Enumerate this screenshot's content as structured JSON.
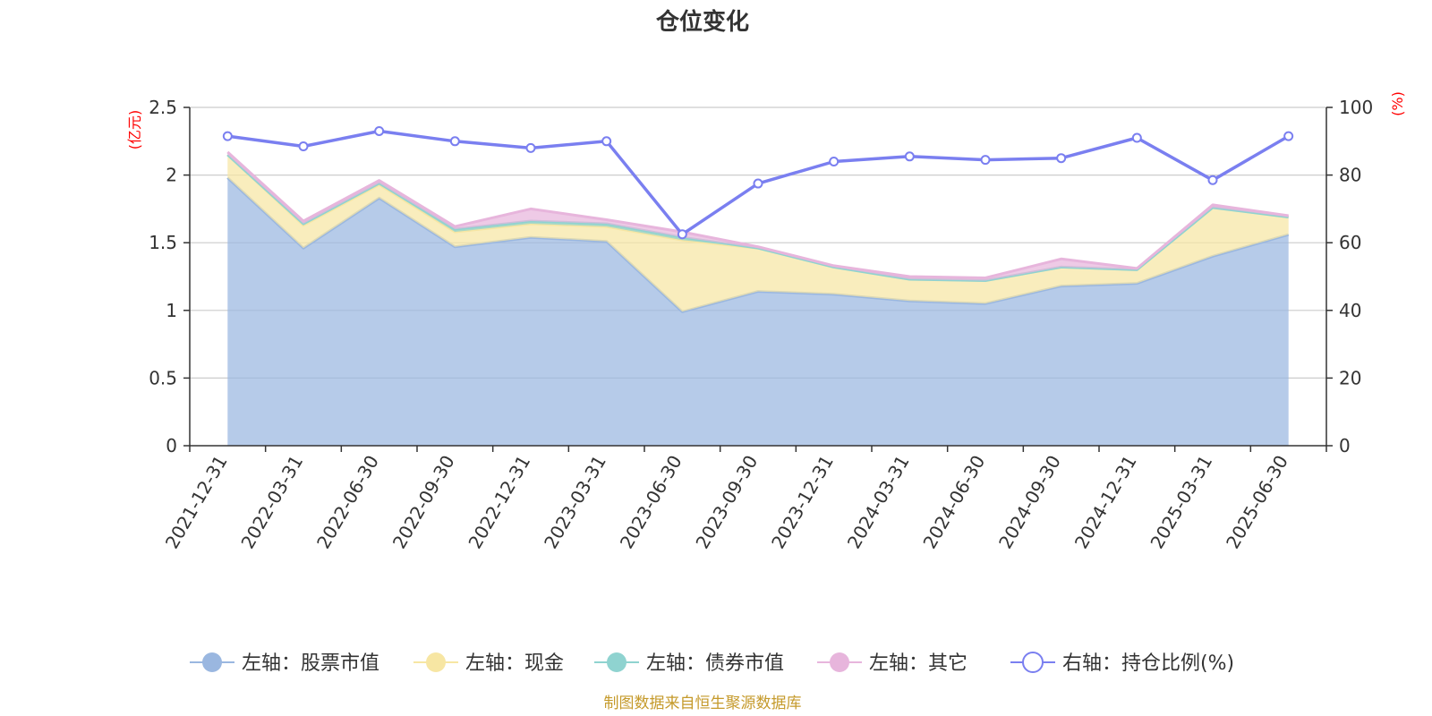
{
  "chart_data": {
    "type": "area",
    "title": "仓位变化",
    "categories": [
      "2021-12-31",
      "2022-03-31",
      "2022-06-30",
      "2022-09-30",
      "2022-12-31",
      "2023-03-31",
      "2023-06-30",
      "2023-09-30",
      "2023-12-31",
      "2024-03-31",
      "2024-06-30",
      "2024-09-30",
      "2024-12-31",
      "2025-03-31",
      "2025-06-30"
    ],
    "left_axis": {
      "unit": "(亿元)",
      "ylim": [
        0,
        2.5
      ],
      "ticks": [
        "0",
        "0.5",
        "1",
        "1.5",
        "2",
        "2.5"
      ],
      "tick_values": [
        0,
        0.5,
        1,
        1.5,
        2,
        2.5
      ]
    },
    "right_axis": {
      "unit": "(%)",
      "ylim": [
        0,
        100
      ],
      "ticks": [
        "0",
        "20",
        "40",
        "60",
        "80",
        "100"
      ],
      "tick_values": [
        0,
        20,
        40,
        60,
        80,
        100
      ]
    },
    "grid": true,
    "legend_position": "bottom",
    "stacked": true,
    "series": [
      {
        "name": "左轴：股票市值",
        "axis": "left",
        "kind": "area",
        "color": "#9ab7e0",
        "values": [
          1.98,
          1.46,
          1.83,
          1.47,
          1.54,
          1.51,
          0.99,
          1.14,
          1.12,
          1.07,
          1.05,
          1.18,
          1.2,
          1.4,
          1.56
        ]
      },
      {
        "name": "左轴：现金",
        "axis": "left",
        "kind": "area",
        "color": "#f7e6a3",
        "values": [
          0.17,
          0.17,
          0.1,
          0.11,
          0.1,
          0.11,
          0.53,
          0.32,
          0.2,
          0.16,
          0.17,
          0.14,
          0.1,
          0.36,
          0.13
        ]
      },
      {
        "name": "左轴：债券市值",
        "axis": "left",
        "kind": "area",
        "color": "#8fd3d0",
        "values": [
          0.0,
          0.01,
          0.01,
          0.02,
          0.02,
          0.02,
          0.02,
          0.0,
          0.0,
          0.0,
          0.0,
          0.0,
          0.0,
          0.0,
          0.0
        ]
      },
      {
        "name": "左轴：其它",
        "axis": "left",
        "kind": "area",
        "color": "#e7b5dc",
        "values": [
          0.02,
          0.02,
          0.02,
          0.02,
          0.09,
          0.03,
          0.04,
          0.01,
          0.01,
          0.02,
          0.02,
          0.06,
          0.01,
          0.02,
          0.01
        ]
      },
      {
        "name": "右轴：持仓比例(%)",
        "axis": "right",
        "kind": "line",
        "color": "#7a7ff0",
        "values": [
          91.5,
          88.5,
          93.0,
          90.0,
          88.0,
          90.0,
          62.5,
          77.5,
          84.0,
          85.5,
          84.5,
          85.0,
          91.0,
          78.5,
          91.5
        ]
      }
    ]
  },
  "footer": {
    "source": "制图数据来自恒生聚源数据库"
  },
  "colors": {
    "axis_unit": "#ff0000",
    "footer": "#c59a2b",
    "grid": "#cccccc",
    "axis": "#333333"
  }
}
